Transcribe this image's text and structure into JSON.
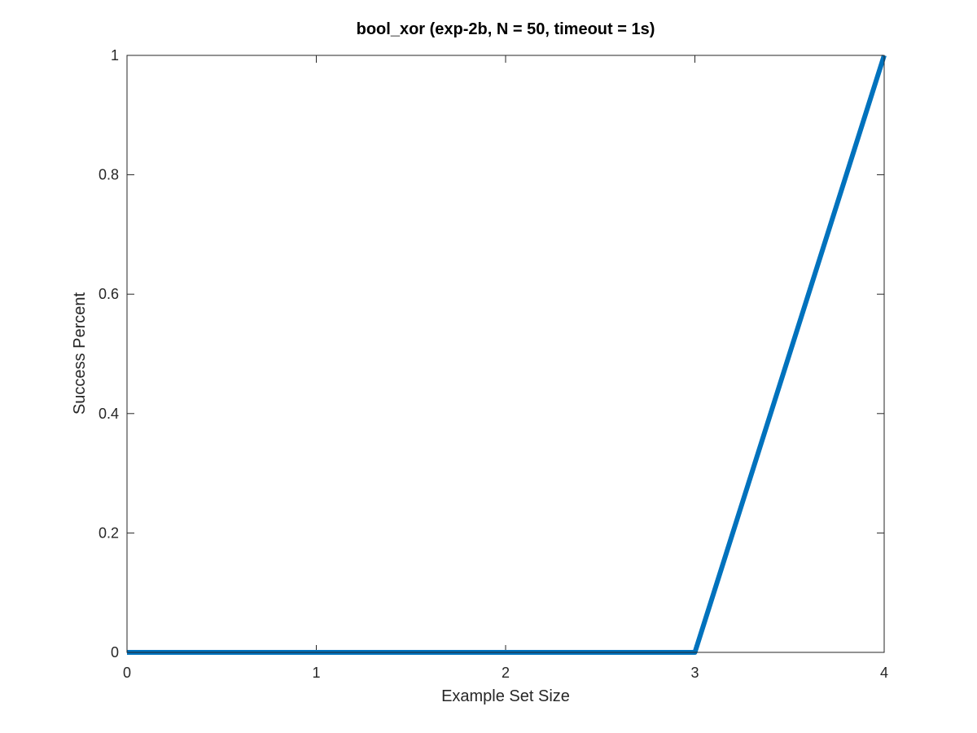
{
  "chart_data": {
    "type": "line",
    "title": "bool_xor (exp-2b, N = 50, timeout = 1s)",
    "xlabel": "Example Set Size",
    "ylabel": "Success Percent",
    "xlim": [
      0,
      4
    ],
    "ylim": [
      0,
      1
    ],
    "xticks": [
      0,
      1,
      2,
      3,
      4
    ],
    "xtick_labels": [
      "0",
      "1",
      "2",
      "3",
      "4"
    ],
    "yticks": [
      0,
      0.2,
      0.4,
      0.6,
      0.8,
      1
    ],
    "ytick_labels": [
      "0",
      "0.2",
      "0.4",
      "0.6",
      "0.8",
      "1"
    ],
    "grid": false,
    "box": true,
    "series": [
      {
        "color": "#0072BD",
        "x": [
          0,
          1,
          2,
          3,
          4
        ],
        "y": [
          0,
          0,
          0,
          0,
          1
        ]
      }
    ]
  }
}
